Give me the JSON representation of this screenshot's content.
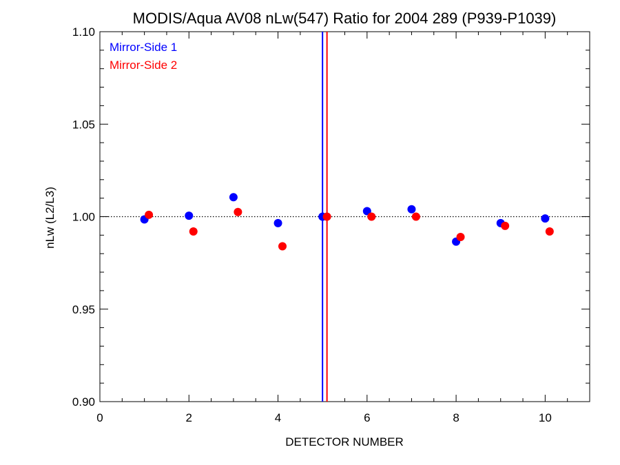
{
  "chart_data": {
    "type": "scatter",
    "title": "MODIS/Aqua AV08 nLw(547) Ratio for 2004 289 (P939-P1039)",
    "xlabel": "DETECTOR NUMBER",
    "ylabel": "nLw (L2/L3)",
    "xlim": [
      0,
      11
    ],
    "ylim": [
      0.9,
      1.1
    ],
    "xticks": [
      0,
      2,
      4,
      6,
      8,
      10
    ],
    "xtick_labels": [
      "0",
      "2",
      "4",
      "6",
      "8",
      "10"
    ],
    "yticks": [
      0.9,
      0.95,
      1.0,
      1.05,
      1.1
    ],
    "ytick_labels": [
      "0.90",
      "0.95",
      "1.00",
      "1.05",
      "1.10"
    ],
    "reference_line": {
      "y": 1.0,
      "style": "dotted",
      "color": "#000000"
    },
    "vertical_lines": [
      {
        "x": 5.0,
        "color": "#0000ff"
      },
      {
        "x": 5.1,
        "color": "#ff0000"
      }
    ],
    "legend_position": "top-left",
    "series": [
      {
        "name": "Mirror-Side 1",
        "color": "#0000ff",
        "x": [
          1,
          2,
          3,
          4,
          5,
          6,
          7,
          8,
          9,
          10
        ],
        "y": [
          0.9985,
          1.0005,
          1.0105,
          0.9965,
          1.0,
          1.003,
          1.004,
          0.9865,
          0.9965,
          0.999
        ]
      },
      {
        "name": "Mirror-Side 2",
        "color": "#ff0000",
        "x": [
          1.1,
          2.1,
          3.1,
          4.1,
          5.1,
          6.1,
          7.1,
          8.1,
          9.1,
          10.1
        ],
        "y": [
          1.001,
          0.992,
          1.0025,
          0.984,
          1.0,
          1.0,
          1.0,
          0.989,
          0.995,
          0.992
        ]
      }
    ]
  }
}
